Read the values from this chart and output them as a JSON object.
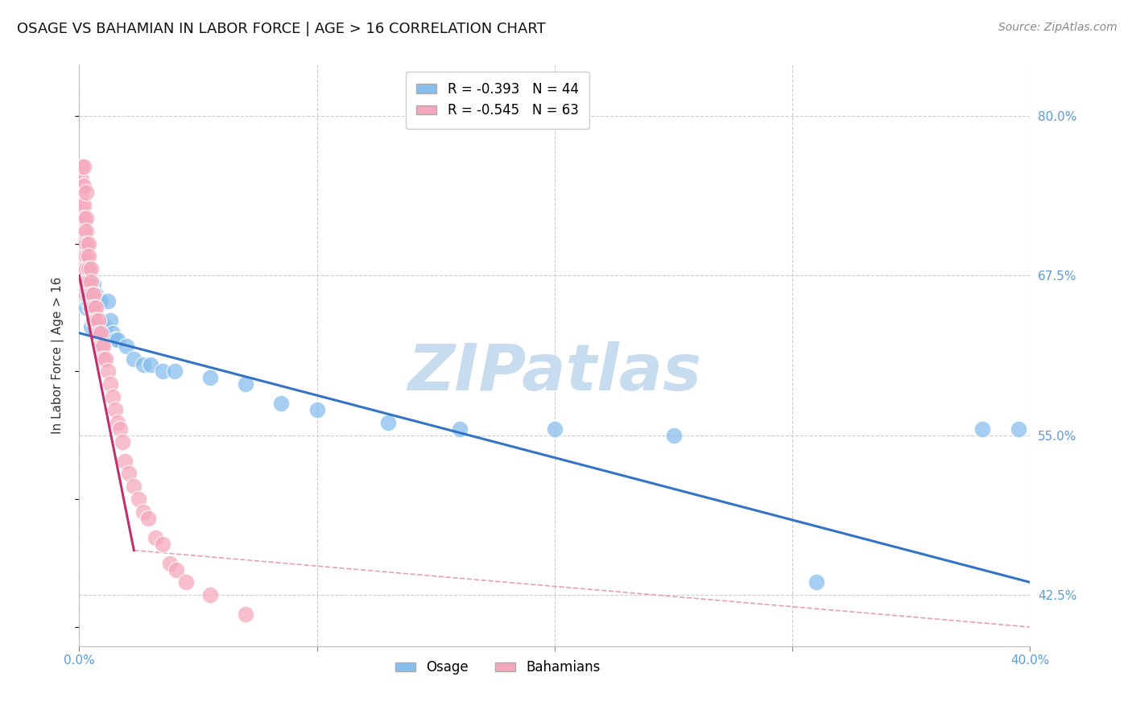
{
  "title": "OSAGE VS BAHAMIAN IN LABOR FORCE | AGE > 16 CORRELATION CHART",
  "source_text": "Source: ZipAtlas.com",
  "ylabel": "In Labor Force | Age > 16",
  "xlim": [
    0.0,
    0.4
  ],
  "ylim": [
    0.385,
    0.84
  ],
  "xticks": [
    0.0,
    0.1,
    0.2,
    0.3,
    0.4
  ],
  "xtick_labels": [
    "0.0%",
    "",
    "",
    "",
    "40.0%"
  ],
  "ytick_values_right": [
    0.425,
    0.55,
    0.675,
    0.8
  ],
  "ytick_labels_right": [
    "42.5%",
    "55.0%",
    "67.5%",
    "80.0%"
  ],
  "legend_r1": "R = -0.393   N = 44",
  "legend_r2": "R = -0.545   N = 63",
  "osage_color": "#87BEEE",
  "bahamian_color": "#F5A8BC",
  "trendline_osage_color": "#3374C4",
  "trendline_bahamian_color": "#C03070",
  "grid_color": "#CCCCCC",
  "ref_line_color": "#E8A0B0",
  "watermark_color": "#C8DCEF",
  "osage_scatter_x": [
    0.001,
    0.002,
    0.002,
    0.003,
    0.003,
    0.003,
    0.004,
    0.004,
    0.005,
    0.005,
    0.005,
    0.006,
    0.006,
    0.006,
    0.007,
    0.007,
    0.008,
    0.008,
    0.009,
    0.009,
    0.01,
    0.011,
    0.012,
    0.013,
    0.014,
    0.015,
    0.016,
    0.02,
    0.023,
    0.027,
    0.03,
    0.035,
    0.04,
    0.055,
    0.07,
    0.085,
    0.1,
    0.13,
    0.16,
    0.2,
    0.25,
    0.31,
    0.38,
    0.395
  ],
  "osage_scatter_y": [
    0.67,
    0.66,
    0.685,
    0.65,
    0.665,
    0.68,
    0.655,
    0.67,
    0.635,
    0.655,
    0.65,
    0.64,
    0.66,
    0.668,
    0.65,
    0.66,
    0.64,
    0.655,
    0.64,
    0.655,
    0.63,
    0.635,
    0.655,
    0.64,
    0.63,
    0.625,
    0.625,
    0.62,
    0.61,
    0.605,
    0.605,
    0.6,
    0.6,
    0.595,
    0.59,
    0.575,
    0.57,
    0.56,
    0.555,
    0.555,
    0.55,
    0.435,
    0.555,
    0.555
  ],
  "bahamian_scatter_x": [
    0.001,
    0.001,
    0.001,
    0.001,
    0.001,
    0.002,
    0.002,
    0.002,
    0.002,
    0.002,
    0.002,
    0.002,
    0.002,
    0.002,
    0.003,
    0.003,
    0.003,
    0.003,
    0.003,
    0.003,
    0.003,
    0.003,
    0.004,
    0.004,
    0.004,
    0.004,
    0.004,
    0.005,
    0.005,
    0.005,
    0.005,
    0.006,
    0.006,
    0.006,
    0.007,
    0.007,
    0.008,
    0.008,
    0.009,
    0.009,
    0.01,
    0.01,
    0.011,
    0.012,
    0.013,
    0.014,
    0.015,
    0.016,
    0.017,
    0.018,
    0.019,
    0.021,
    0.023,
    0.025,
    0.027,
    0.029,
    0.032,
    0.035,
    0.038,
    0.041,
    0.045,
    0.055,
    0.07
  ],
  "bahamian_scatter_y": [
    0.76,
    0.75,
    0.74,
    0.73,
    0.72,
    0.76,
    0.745,
    0.73,
    0.72,
    0.71,
    0.7,
    0.69,
    0.68,
    0.67,
    0.74,
    0.72,
    0.71,
    0.7,
    0.69,
    0.68,
    0.67,
    0.66,
    0.7,
    0.69,
    0.68,
    0.67,
    0.66,
    0.68,
    0.67,
    0.66,
    0.65,
    0.66,
    0.65,
    0.64,
    0.65,
    0.64,
    0.64,
    0.63,
    0.63,
    0.62,
    0.62,
    0.61,
    0.61,
    0.6,
    0.59,
    0.58,
    0.57,
    0.56,
    0.555,
    0.545,
    0.53,
    0.52,
    0.51,
    0.5,
    0.49,
    0.485,
    0.47,
    0.465,
    0.45,
    0.445,
    0.435,
    0.425,
    0.41
  ],
  "osage_trendline_x": [
    0.0,
    0.4
  ],
  "osage_trendline_y": [
    0.63,
    0.435
  ],
  "bahamian_trendline_x": [
    0.0,
    0.023
  ],
  "bahamian_trendline_y": [
    0.675,
    0.46
  ],
  "ref_line_x": [
    0.023,
    0.4
  ],
  "ref_line_y": [
    0.46,
    0.4
  ]
}
